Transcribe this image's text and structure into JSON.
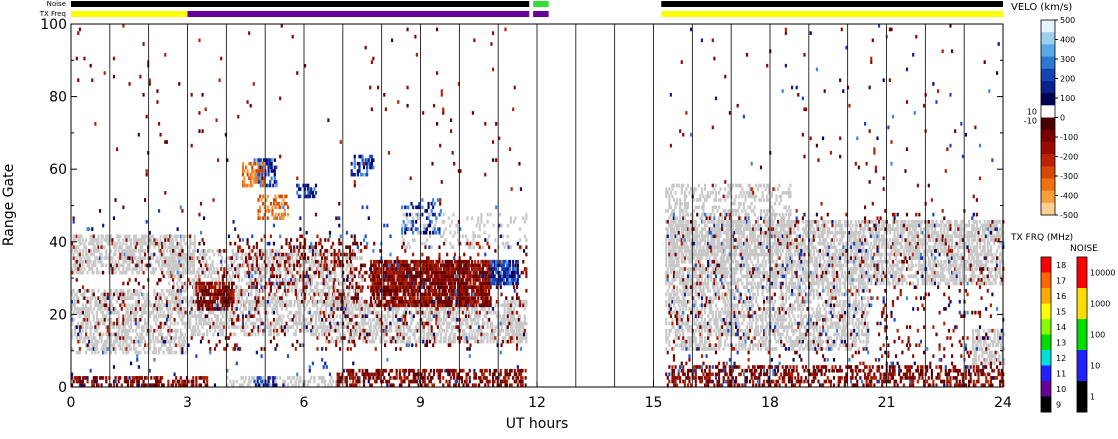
{
  "chart_data": {
    "type": "heatmap",
    "xlabel": "UT hours",
    "ylabel": "Range Gate",
    "xlim": [
      0,
      24
    ],
    "ylim": [
      0,
      100
    ],
    "x_ticks": [
      "0",
      "3",
      "6",
      "9",
      "12",
      "15",
      "18",
      "21",
      "24"
    ],
    "y_ticks": [
      "0",
      "20",
      "40",
      "60",
      "80",
      "100"
    ],
    "minor_grid_hours": [
      1,
      2,
      3,
      4,
      5,
      6,
      7,
      8,
      9,
      10,
      11,
      12,
      13,
      14,
      15,
      16,
      17,
      18,
      19,
      20,
      21,
      22,
      23
    ],
    "top_bars": {
      "noise_label": "Noise",
      "txfreq_label": "TX Freq",
      "noise_segments": [
        {
          "start": 0.0,
          "end": 11.8,
          "color": "#000000"
        },
        {
          "start": 11.9,
          "end": 12.3,
          "color": "#33dd33"
        },
        {
          "start": 15.2,
          "end": 24.0,
          "color": "#000000"
        }
      ],
      "txfreq_segments": [
        {
          "start": 0.0,
          "end": 3.0,
          "color": "#ffff00"
        },
        {
          "start": 3.0,
          "end": 11.8,
          "color": "#660099"
        },
        {
          "start": 11.9,
          "end": 12.3,
          "color": "#660099"
        },
        {
          "start": 15.2,
          "end": 24.0,
          "color": "#ffff00"
        }
      ]
    },
    "velocity_scale": {
      "title": "VELO (km/s)",
      "ticks": [
        "500",
        "400",
        "300",
        "200",
        "100",
        "0",
        "-100",
        "-200",
        "-300",
        "-400",
        "-500"
      ],
      "near_zero_labels": [
        "10",
        "-10"
      ],
      "colors": [
        "#e6f2ff",
        "#9ccfee",
        "#5aa8e6",
        "#2e76d2",
        "#1444b2",
        "#08208c",
        "#00004e",
        "#ffffff",
        "#4a0000",
        "#7a0000",
        "#9a0a00",
        "#ba2200",
        "#d64800",
        "#ee7010",
        "#f8a040",
        "#fccf90"
      ]
    },
    "txfreq_scale": {
      "title": "TX FRQ (MHz)",
      "ticks": [
        "18",
        "17",
        "16",
        "15",
        "14",
        "13",
        "12",
        "11",
        "10",
        "9"
      ],
      "colors": [
        "#ff0000",
        "#ff6600",
        "#ffaa00",
        "#ffff00",
        "#88ff00",
        "#00dd00",
        "#00dddd",
        "#2222ff",
        "#660099",
        "#000000"
      ]
    },
    "noise_scale": {
      "title": "NOISE",
      "ticks": [
        "10000",
        "1000",
        "100",
        "10",
        "1"
      ],
      "colors": [
        "#ff0000",
        "#ffdd00",
        "#00dd00",
        "#2222ff",
        "#000000"
      ]
    },
    "data_gaps": [
      [
        11.9,
        15.2
      ]
    ],
    "ground_scatter_color": "#c8c8c8",
    "regions": [
      {
        "kind": "ground",
        "x": [
          0,
          3.2
        ],
        "y": [
          31,
          42
        ],
        "density": 0.55
      },
      {
        "kind": "ground",
        "x": [
          0,
          3.0
        ],
        "y": [
          9,
          27
        ],
        "density": 0.5
      },
      {
        "kind": "ground",
        "x": [
          2.5,
          7.5
        ],
        "y": [
          22,
          38
        ],
        "density": 0.4
      },
      {
        "kind": "ground",
        "x": [
          3.0,
          6.5
        ],
        "y": [
          14,
          24
        ],
        "density": 0.45
      },
      {
        "kind": "ground",
        "x": [
          6.5,
          11.7
        ],
        "y": [
          12,
          24
        ],
        "density": 0.5
      },
      {
        "kind": "ground",
        "x": [
          8.5,
          11.7
        ],
        "y": [
          38,
          48
        ],
        "density": 0.18
      },
      {
        "kind": "ground",
        "x": [
          4.0,
          7.5
        ],
        "y": [
          0,
          3
        ],
        "density": 0.35
      },
      {
        "kind": "ground",
        "x": [
          15.3,
          24
        ],
        "y": [
          28,
          46
        ],
        "density": 0.6
      },
      {
        "kind": "ground",
        "x": [
          15.3,
          20.5
        ],
        "y": [
          10,
          28
        ],
        "density": 0.5
      },
      {
        "kind": "ground",
        "x": [
          15.3,
          18.5
        ],
        "y": [
          36,
          56
        ],
        "density": 0.35
      },
      {
        "kind": "ground",
        "x": [
          23.2,
          24
        ],
        "y": [
          6,
          16
        ],
        "density": 0.5
      },
      {
        "kind": "neg",
        "x": [
          7.7,
          10.8
        ],
        "y": [
          22,
          35
        ],
        "density": 0.82,
        "shade": 0.3
      },
      {
        "kind": "neg",
        "x": [
          3.2,
          4.2
        ],
        "y": [
          21,
          29
        ],
        "density": 0.78,
        "shade": 0.3
      },
      {
        "kind": "neg",
        "x": [
          4.2,
          7.5
        ],
        "y": [
          24,
          41
        ],
        "density": 0.16,
        "shade": 0.3
      },
      {
        "kind": "neg",
        "x": [
          0,
          7.5
        ],
        "y": [
          10,
          42
        ],
        "density": 0.06,
        "shade": 0.3
      },
      {
        "kind": "neg",
        "x": [
          6.8,
          11.7
        ],
        "y": [
          0,
          5
        ],
        "density": 0.45,
        "shade": 0.35
      },
      {
        "kind": "neg",
        "x": [
          6.5,
          11.7
        ],
        "y": [
          10,
          40
        ],
        "density": 0.08,
        "shade": 0.3
      },
      {
        "kind": "neg",
        "x": [
          0,
          3.5
        ],
        "y": [
          0,
          3
        ],
        "density": 0.5,
        "shade": 0.3
      },
      {
        "kind": "neg",
        "x": [
          15.3,
          24
        ],
        "y": [
          0,
          6
        ],
        "density": 0.45,
        "shade": 0.35
      },
      {
        "kind": "neg",
        "x": [
          15.3,
          24
        ],
        "y": [
          6,
          48
        ],
        "density": 0.05,
        "shade": 0.3
      },
      {
        "kind": "pos",
        "x": [
          10.8,
          11.5
        ],
        "y": [
          28,
          35
        ],
        "density": 0.8,
        "shade": 0.8
      },
      {
        "kind": "pos",
        "x": [
          4.7,
          5.3
        ],
        "y": [
          55,
          63
        ],
        "density": 0.55,
        "shade": 0.75
      },
      {
        "kind": "pos",
        "x": [
          4.7,
          5.3
        ],
        "y": [
          0,
          3
        ],
        "density": 0.55,
        "shade": 0.75
      },
      {
        "kind": "pos",
        "x": [
          5.8,
          6.3
        ],
        "y": [
          52,
          56
        ],
        "density": 0.5,
        "shade": 0.55
      },
      {
        "kind": "pos",
        "x": [
          7.2,
          7.8
        ],
        "y": [
          58,
          64
        ],
        "density": 0.5,
        "shade": 0.3
      },
      {
        "kind": "pos",
        "x": [
          8.5,
          9.5
        ],
        "y": [
          42,
          52
        ],
        "density": 0.3,
        "shade": 0.7
      },
      {
        "kind": "pos",
        "x": [
          0,
          11.7
        ],
        "y": [
          0,
          50
        ],
        "density": 0.018,
        "shade": 0.8
      },
      {
        "kind": "pos",
        "x": [
          15.3,
          24
        ],
        "y": [
          0,
          48
        ],
        "density": 0.025,
        "shade": 0.8
      },
      {
        "kind": "orange",
        "x": [
          4.4,
          5.0
        ],
        "y": [
          55,
          62
        ],
        "density": 0.5,
        "shade": 0.6
      },
      {
        "kind": "orange",
        "x": [
          4.8,
          5.6
        ],
        "y": [
          46,
          53
        ],
        "density": 0.5,
        "shade": 0.55
      },
      {
        "kind": "neg",
        "x": [
          0,
          11.7
        ],
        "y": [
          45,
          100
        ],
        "density": 0.008,
        "shade": 0.3
      },
      {
        "kind": "neg",
        "x": [
          15.3,
          24
        ],
        "y": [
          45,
          100
        ],
        "density": 0.009,
        "shade": 0.3
      },
      {
        "kind": "pos",
        "x": [
          15.3,
          24
        ],
        "y": [
          60,
          100
        ],
        "density": 0.004,
        "shade": 0.4
      }
    ]
  }
}
